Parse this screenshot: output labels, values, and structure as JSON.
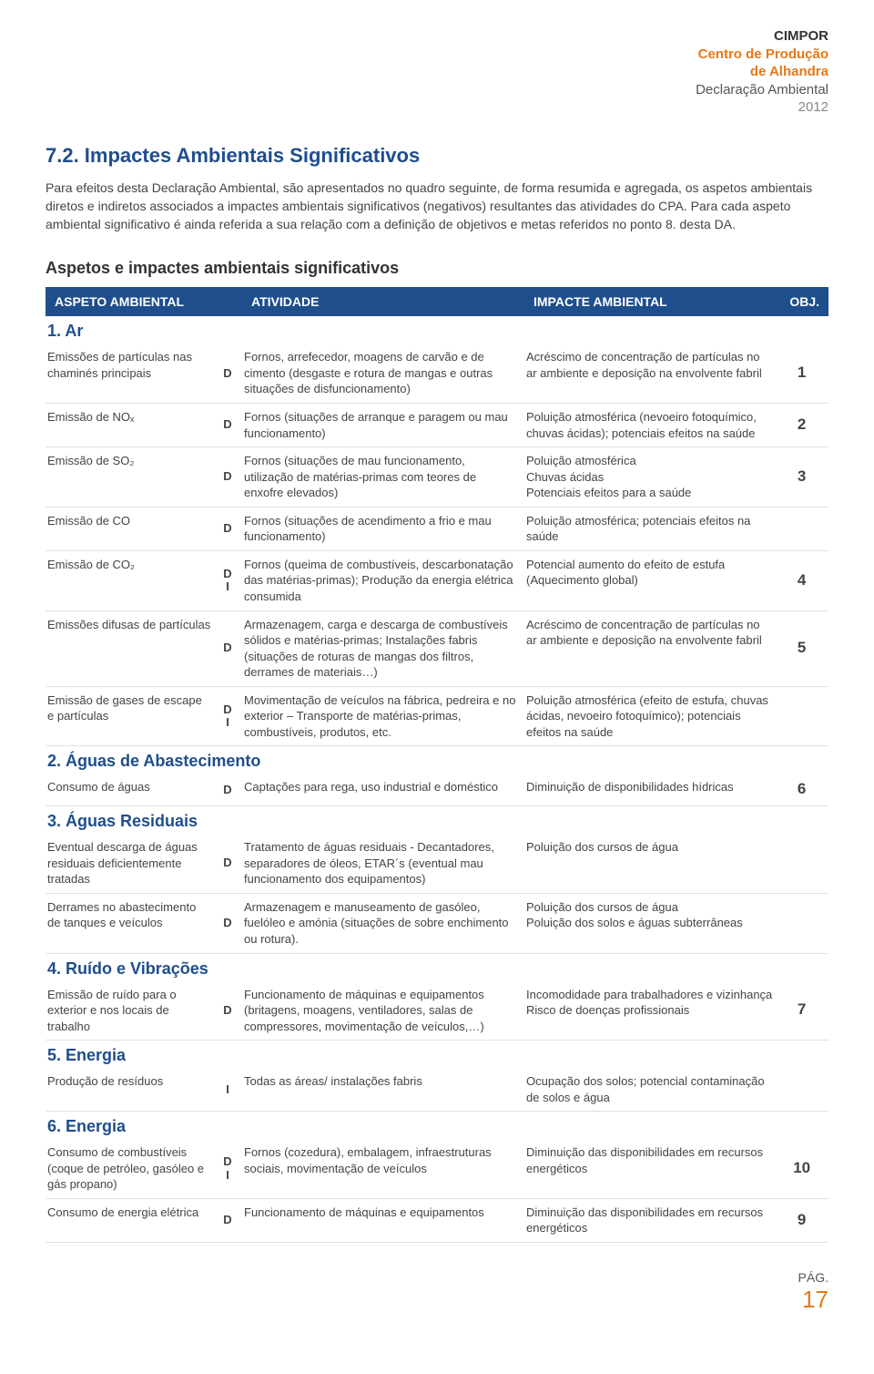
{
  "colors": {
    "brand_orange": "#e67817",
    "header_blue": "#1f4e8c",
    "category_blue": "#1f4e8c",
    "footer_orange": "#e67817",
    "text_gray": "#444444",
    "border_gray": "#e0e0e0"
  },
  "header": {
    "line1": "CIMPOR",
    "line2": "Centro de Produção",
    "line3": "de Alhandra",
    "line4": "Declaração Ambiental",
    "line5": "2012"
  },
  "section_title": "7.2. Impactes Ambientais Significativos",
  "intro": "Para efeitos desta Declaração Ambiental, são apresentados no quadro seguinte, de forma resumida e agregada, os aspetos ambientais diretos e indiretos associados a impactes ambientais significativos (negativos) resultantes das atividades do CPA. Para cada aspeto ambiental significativo é ainda referida a sua relação com a definição de objetivos e metas referidos no ponto 8. desta DA.",
  "subheading": "Aspetos e impactes ambientais significativos",
  "columns": {
    "aspect": "ASPETO AMBIENTAL",
    "activity": "ATIVIDADE",
    "impact": "IMPACTE AMBIENTAL",
    "obj": "OBJ."
  },
  "categories": [
    {
      "title": "1. Ar",
      "rows": [
        {
          "aspect": "Emissões de partículas nas chaminés principais",
          "types": [
            "D"
          ],
          "activity": "Fornos, arrefecedor, moagens de carvão e de cimento (desgaste e rotura de mangas e outras situações de disfuncionamento)",
          "impact": "Acréscimo de concentração de partículas no ar ambiente e deposição na envolvente fabril",
          "obj": "1"
        },
        {
          "aspect": "Emissão de NOₓ",
          "types": [
            "D"
          ],
          "activity": "Fornos (situações de arranque e paragem ou mau funcionamento)",
          "impact": "Poluição atmosférica (nevoeiro fotoquímico, chuvas ácidas); potenciais efeitos na saúde",
          "obj": "2"
        },
        {
          "aspect": "Emissão de SO₂",
          "types": [
            "D"
          ],
          "activity": "Fornos (situações de mau funcionamento, utilização de matérias-primas com teores de enxofre elevados)",
          "impact": "Poluição atmosférica\nChuvas ácidas\nPotenciais efeitos para a saúde",
          "obj": "3"
        },
        {
          "aspect": "Emissão de CO",
          "types": [
            "D"
          ],
          "activity": "Fornos (situações de acendimento a frio e mau funcionamento)",
          "impact": "Poluição atmosférica; potenciais efeitos na saúde",
          "obj": ""
        },
        {
          "aspect": "Emissão de CO₂",
          "types": [
            "D",
            "I"
          ],
          "activity": "Fornos (queima de combustíveis, descarbonatação das matérias-primas); Produção da energia elétrica consumida",
          "impact": "Potencial aumento do efeito de estufa (Aquecimento global)",
          "obj": "4"
        },
        {
          "aspect": "Emissões difusas de partículas",
          "types": [
            "D"
          ],
          "activity": "Armazenagem, carga e descarga de combustíveis sólidos e matérias-primas; Instalações fabris (situações de roturas de mangas dos filtros, derrames de materiais…)",
          "impact": "Acréscimo de concentração de partículas no ar ambiente e deposição na envolvente fabril",
          "obj": "5"
        },
        {
          "aspect": "Emissão de gases de escape e partículas",
          "types": [
            "D",
            "I"
          ],
          "activity": "Movimentação de veículos na fábrica, pedreira e no exterior – Transporte de matérias-primas, combustíveis, produtos, etc.",
          "impact": "Poluição atmosférica (efeito de estufa, chuvas ácidas, nevoeiro fotoquímico); potenciais efeitos na saúde",
          "obj": ""
        }
      ]
    },
    {
      "title": "2. Águas de Abastecimento",
      "rows": [
        {
          "aspect": "Consumo de águas",
          "types": [
            "D"
          ],
          "activity": "Captações para rega, uso industrial e doméstico",
          "impact": "Diminuição de disponibilidades hídricas",
          "obj": "6"
        }
      ]
    },
    {
      "title": "3. Águas Residuais",
      "rows": [
        {
          "aspect": "Eventual descarga de águas residuais deficientemente tratadas",
          "types": [
            "D"
          ],
          "activity": "Tratamento de águas residuais - Decantadores, separadores de óleos, ETAR´s (eventual mau funcionamento dos equipamentos)",
          "impact": "Poluição dos cursos de água",
          "obj": ""
        },
        {
          "aspect": "Derrames no abastecimento de tanques e veículos",
          "types": [
            "D"
          ],
          "activity": "Armazenagem e manuseamento de gasóleo, fuelóleo e amónia (situações de sobre enchimento ou rotura).",
          "impact": "Poluição dos cursos de água\nPoluição dos solos e águas subterrâneas",
          "obj": ""
        }
      ]
    },
    {
      "title": "4. Ruído e Vibrações",
      "rows": [
        {
          "aspect": "Emissão de ruído para o exterior e nos locais de trabalho",
          "types": [
            "D"
          ],
          "activity": "Funcionamento de máquinas e equipamentos (britagens, moagens, ventiladores, salas de compressores, movimentação de veículos,…)",
          "impact": "Incomodidade para trabalhadores e vizinhança\nRisco de doenças profissionais",
          "obj": "7"
        }
      ]
    },
    {
      "title": "5. Energia",
      "rows": [
        {
          "aspect": "Produção de resíduos",
          "types": [
            "I"
          ],
          "activity": "Todas as áreas/ instalações fabris",
          "impact": "Ocupação dos solos; potencial contaminação de solos e água",
          "obj": ""
        }
      ]
    },
    {
      "title": "6. Energia",
      "rows": [
        {
          "aspect": "Consumo de combustíveis (coque de petróleo, gasóleo e gás propano)",
          "types": [
            "D",
            "I"
          ],
          "activity": "Fornos (cozedura), embalagem, infraestruturas sociais, movimentação de veículos",
          "impact": "Diminuição das disponibilidades em recursos energéticos",
          "obj": "10"
        },
        {
          "aspect": "Consumo de energia elétrica",
          "types": [
            "D"
          ],
          "activity": "Funcionamento de máquinas e equipamentos",
          "impact": "Diminuição das disponibilidades em recursos energéticos",
          "obj": "9"
        }
      ]
    }
  ],
  "footer": {
    "label": "PÁG.",
    "number": "17"
  }
}
